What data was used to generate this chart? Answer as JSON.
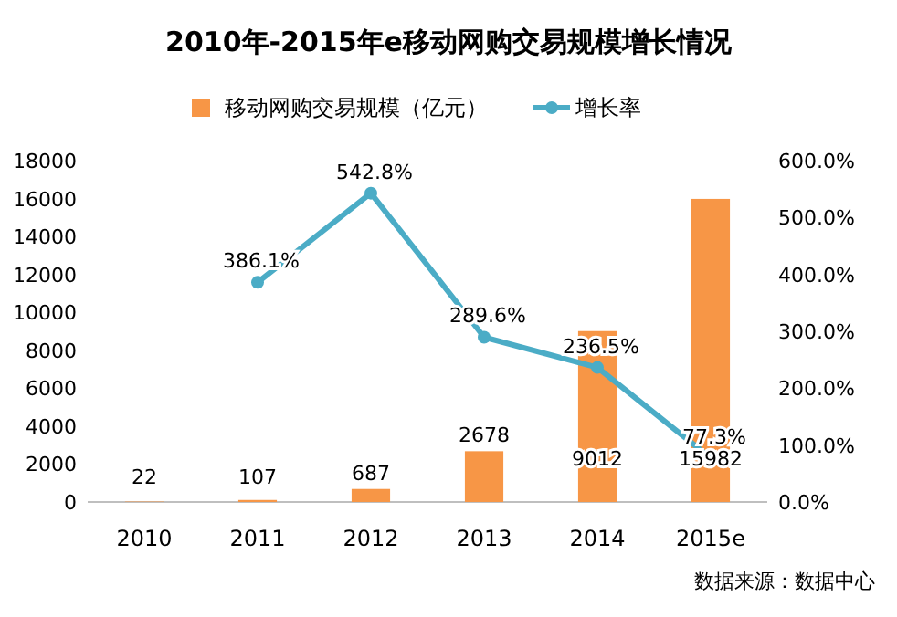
{
  "chart_data": {
    "type": "bar",
    "title": "2010年-2015年e移动网购交易规模增长情况",
    "categories": [
      "2010",
      "2011",
      "2012",
      "2013",
      "2014",
      "2015e"
    ],
    "series": [
      {
        "name": "移动网购交易规模（亿元）",
        "color": "#f79646",
        "values": [
          22,
          107,
          687,
          2678,
          9012,
          15982
        ],
        "value_labels": [
          "22",
          "107",
          "687",
          "2678",
          "9012",
          "15982"
        ]
      },
      {
        "name": "增长率",
        "type": "line",
        "axis": "y2",
        "color": "#4bacc6",
        "marker": "circle",
        "values": [
          null,
          386.1,
          542.8,
          289.6,
          236.5,
          77.3
        ],
        "value_labels": [
          null,
          "386.1%",
          "542.8%",
          "289.6%",
          "236.5%",
          "77.3%"
        ]
      }
    ],
    "ylim": [
      0,
      18000
    ],
    "yticks": [
      0,
      2000,
      4000,
      6000,
      8000,
      10000,
      12000,
      14000,
      16000,
      18000
    ],
    "y2lim": [
      0,
      600
    ],
    "y2ticks": [
      {
        "value": 0,
        "label": "0.0%"
      },
      {
        "value": 100,
        "label": "100.0%"
      },
      {
        "value": 200,
        "label": "200.0%"
      },
      {
        "value": 300,
        "label": "300.0%"
      },
      {
        "value": 400,
        "label": "400.0%"
      },
      {
        "value": 500,
        "label": "500.0%"
      },
      {
        "value": 600,
        "label": "600.0%"
      }
    ],
    "legend": "top",
    "grid": false,
    "annotations": [
      "数据来源：数据中心"
    ]
  }
}
